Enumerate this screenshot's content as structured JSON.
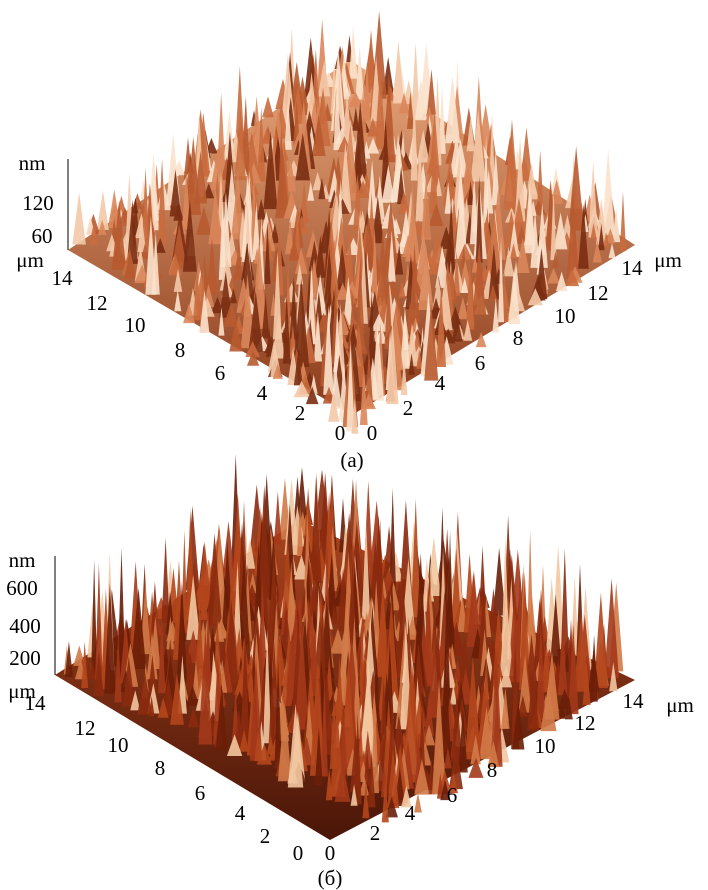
{
  "panels": [
    {
      "caption": "(a)",
      "z_unit": "nm",
      "z_ticks": [
        120,
        60
      ],
      "left_unit": "μm",
      "left_ticks": [
        14,
        12,
        10,
        8,
        6,
        4,
        2,
        0
      ],
      "right_unit": "μm",
      "right_ticks": [
        0,
        2,
        4,
        6,
        8,
        10,
        12,
        14
      ]
    },
    {
      "caption": "(б)",
      "z_unit": "nm",
      "z_ticks": [
        600,
        400,
        200
      ],
      "left_unit": "μm",
      "left_ticks": [
        14,
        12,
        10,
        8,
        6,
        4,
        2,
        0
      ],
      "right_unit": "μm",
      "right_ticks": [
        0,
        2,
        4,
        6,
        8,
        10,
        12,
        14
      ]
    }
  ]
}
